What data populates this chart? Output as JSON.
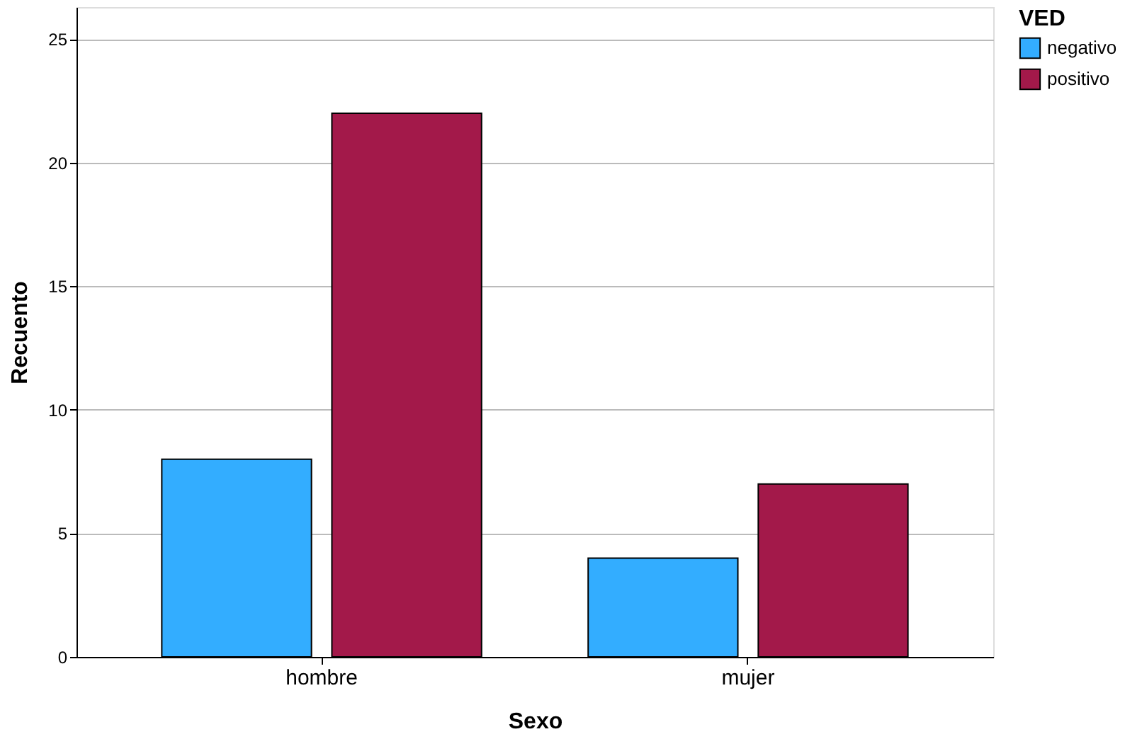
{
  "chart_data": {
    "type": "bar",
    "xlabel": "Sexo",
    "ylabel": "Recuento",
    "legend_title": "VED",
    "categories": [
      "hombre",
      "mujer"
    ],
    "series": [
      {
        "name": "negativo",
        "color": "#33adff",
        "values": [
          8,
          4
        ]
      },
      {
        "name": "positivo",
        "color": "#a3194a",
        "values": [
          22,
          7
        ]
      }
    ],
    "ylim": [
      0,
      26.3
    ],
    "yticks": [
      0,
      5,
      10,
      15,
      20,
      25
    ],
    "grid": "y",
    "legend": "top right"
  }
}
